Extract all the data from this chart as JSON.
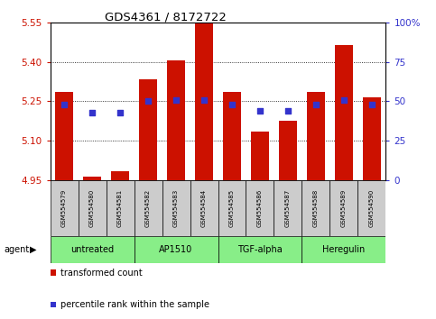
{
  "title": "GDS4361 / 8172722",
  "samples": [
    "GSM554579",
    "GSM554580",
    "GSM554581",
    "GSM554582",
    "GSM554583",
    "GSM554584",
    "GSM554585",
    "GSM554586",
    "GSM554587",
    "GSM554588",
    "GSM554589",
    "GSM554590"
  ],
  "bar_values": [
    5.285,
    4.965,
    4.985,
    5.335,
    5.405,
    5.545,
    5.285,
    5.135,
    5.175,
    5.285,
    5.465,
    5.265
  ],
  "dot_values_pct": [
    48,
    43,
    43,
    50,
    51,
    51,
    48,
    44,
    44,
    48,
    51,
    48
  ],
  "bar_bottom": 4.95,
  "ylim": [
    4.95,
    5.55
  ],
  "y2lim": [
    0,
    100
  ],
  "yticks": [
    4.95,
    5.1,
    5.25,
    5.4,
    5.55
  ],
  "y2ticks": [
    0,
    25,
    50,
    75,
    100
  ],
  "bar_color": "#cc1100",
  "dot_color": "#3333cc",
  "agent_bg": "#88ee88",
  "grid_color": "black",
  "tick_label_color_left": "#cc1100",
  "tick_label_color_right": "#3333cc",
  "legend_bar_label": "transformed count",
  "legend_dot_label": "percentile rank within the sample",
  "bar_width": 0.65,
  "agents": [
    {
      "label": "untreated",
      "start": 0,
      "end": 3
    },
    {
      "label": "AP1510",
      "start": 3,
      "end": 6
    },
    {
      "label": "TGF-alpha",
      "start": 6,
      "end": 9
    },
    {
      "label": "Heregulin",
      "start": 9,
      "end": 12
    }
  ]
}
